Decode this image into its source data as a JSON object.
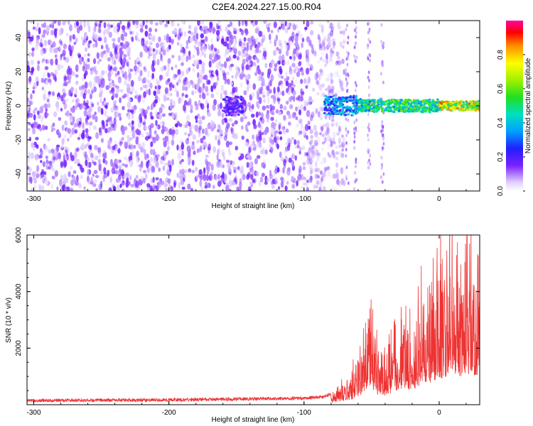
{
  "title": "C2E4.2024.227.15.00.R04",
  "colors": {
    "spectrogram_low": "#6a00e8",
    "spectrogram_high": "#ff0000",
    "snr_line": "#ee3333",
    "axis": "#000000"
  },
  "chart_data": [
    {
      "type": "heatmap",
      "xlabel": "Height of straight line (km)",
      "ylabel": "Frequency (Hz)",
      "xlim": [
        -305,
        30
      ],
      "ylim": [
        -50,
        50
      ],
      "xticks": [
        -300,
        -200,
        -100,
        0
      ],
      "yticks": [
        -40,
        -20,
        0,
        20,
        40
      ],
      "grid": false,
      "colorbar": {
        "label": "Normalized spectral amplitude",
        "range": [
          0,
          1
        ],
        "ticks": [
          "0.0",
          "0.2",
          "0.4",
          "0.6",
          "0.8"
        ]
      },
      "regions": [
        {
          "x_range": [
            -305,
            -80
          ],
          "y_range": [
            -50,
            50
          ],
          "amplitude": 0.1
        },
        {
          "x_range": [
            -160,
            -145
          ],
          "y_range": [
            -6,
            6
          ],
          "amplitude": 0.18
        },
        {
          "x_range": [
            -85,
            -60
          ],
          "y_range": [
            -6,
            6
          ],
          "amplitude": 0.35
        },
        {
          "x_range": [
            -60,
            0
          ],
          "y_range": [
            -4,
            4
          ],
          "amplitude": 0.5
        },
        {
          "x_range": [
            0,
            30
          ],
          "y_range": [
            -3,
            3
          ],
          "amplitude": 0.7
        }
      ]
    },
    {
      "type": "line",
      "xlabel": "Height of straight line (km)",
      "ylabel": "SNR (10 * v/v)",
      "xlim": [
        -305,
        30
      ],
      "ylim": [
        0,
        6000
      ],
      "xticks": [
        -300,
        -200,
        -100,
        0
      ],
      "yticks": [
        2000,
        4000,
        6000
      ],
      "grid": false,
      "series": [
        {
          "x": [
            -305,
            -250,
            -200,
            -150,
            -100,
            -85,
            -75,
            -65,
            -58,
            -55,
            -50,
            -48,
            -45,
            -40,
            -35,
            -30,
            -25,
            -20,
            -15,
            -10,
            -5,
            0,
            5,
            8,
            10,
            15,
            20,
            25,
            30
          ],
          "values": [
            150,
            160,
            170,
            200,
            230,
            280,
            500,
            900,
            1600,
            2500,
            3600,
            2200,
            1700,
            1400,
            1900,
            2600,
            3000,
            2400,
            3300,
            3600,
            3900,
            4300,
            4700,
            5300,
            5800,
            4800,
            5100,
            5200,
            5300
          ]
        }
      ]
    }
  ]
}
